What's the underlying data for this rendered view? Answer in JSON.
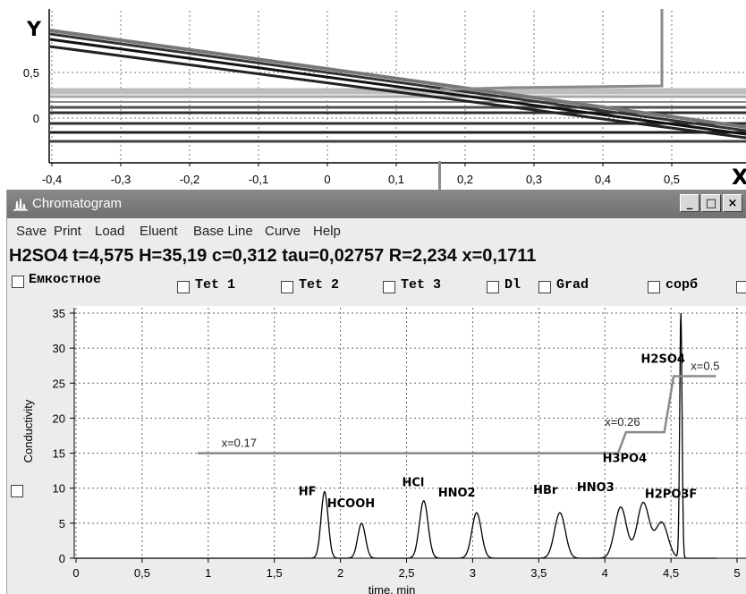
{
  "top_plot": {
    "y_axis_label": "Y",
    "x_axis_label": "X",
    "x_ticks": [
      "-0,4",
      "-0,3",
      "-0,2",
      "-0,1",
      "0",
      "0,1",
      "0,2",
      "0,3",
      "0,4",
      "0,5"
    ],
    "y_ticks": [
      "0,5",
      "0"
    ]
  },
  "window": {
    "title": "Chromatogram",
    "min_glyph": "_",
    "max_glyph": "□",
    "close_glyph": "×",
    "menu": [
      "Save",
      "Print",
      "Load",
      "Eluent",
      "Base Line",
      "Curve",
      "Help"
    ]
  },
  "status": {
    "text": "H2SO4 t=4,575  H=35,19  c=0,312  tau=0,02757  R=2,234  x=0,1711"
  },
  "checkboxes": [
    "Емкостное",
    "Tet 1",
    "Tet 2",
    "Tet 3",
    "Dl",
    "Grad",
    "сорб"
  ],
  "chart_data": {
    "type": "line",
    "xlabel": "time, min",
    "ylabel": "Conductivity",
    "xlim": [
      0,
      5
    ],
    "ylim": [
      0,
      35
    ],
    "x_ticks": [
      "0",
      "0,5",
      "1",
      "1,5",
      "2",
      "2,5",
      "3",
      "3,5",
      "4",
      "4,5",
      "5"
    ],
    "y_ticks": [
      "0",
      "5",
      "10",
      "15",
      "20",
      "25",
      "30",
      "35"
    ],
    "grid": true,
    "peaks": [
      {
        "label": "HF",
        "t": 1.88,
        "h": 9.5
      },
      {
        "label": "HCOOH",
        "t": 2.16,
        "h": 5.0
      },
      {
        "label": "HCl",
        "t": 2.63,
        "h": 8.2
      },
      {
        "label": "HNO2",
        "t": 3.03,
        "h": 6.5
      },
      {
        "label": "HBr",
        "t": 3.66,
        "h": 6.5
      },
      {
        "label": "HNO3",
        "t": 4.12,
        "h": 7.3
      },
      {
        "label": "H3PO4",
        "t": 4.29,
        "h": 7.9
      },
      {
        "label": "H2PO3F",
        "t": 4.43,
        "h": 5.1
      },
      {
        "label": "H2SO4",
        "t": 4.575,
        "h": 35.19
      }
    ],
    "eluent_profile": {
      "points": [
        [
          0.92,
          15
        ],
        [
          4.1,
          15
        ],
        [
          4.16,
          18
        ],
        [
          4.45,
          18
        ],
        [
          4.52,
          26
        ],
        [
          4.84,
          26
        ]
      ],
      "labels": [
        "x=0.17",
        "x=0.26",
        "x=0.5"
      ]
    }
  }
}
